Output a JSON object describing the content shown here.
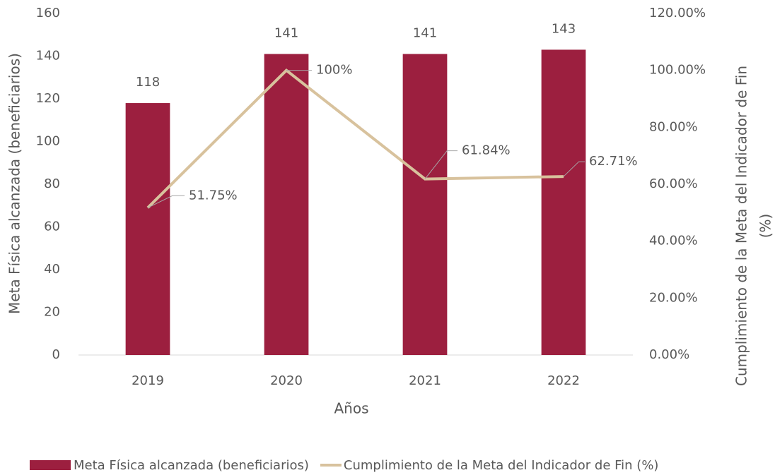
{
  "chart_data": {
    "type": "bar",
    "xlabel": "Años",
    "ylabel": "Meta Física alcanzada (beneficiarios)",
    "y2label": [
      "Cumplimiento de la Meta del Indicador de Fin",
      "(%)"
    ],
    "categories": [
      "2019",
      "2020",
      "2021",
      "2022"
    ],
    "series": [
      {
        "name": "Meta Física alcanzada (beneficiarios)",
        "type": "bar",
        "color": "#9c1f3f",
        "values": [
          118,
          141,
          141,
          143
        ]
      },
      {
        "name": "Cumplimiento de la Meta del Indicador de Fin (%)",
        "type": "line",
        "axis": "y2",
        "color": "#d8c29d",
        "values": [
          51.75,
          100,
          61.84,
          62.71
        ],
        "value_labels": [
          "51.75%",
          "100%",
          "61.84%",
          "62.71%"
        ]
      }
    ],
    "ylim": [
      0,
      160
    ],
    "yticks": [
      0,
      20,
      40,
      60,
      80,
      100,
      120,
      140,
      160
    ],
    "y2lim": [
      0,
      120
    ],
    "y2ticks": [
      {
        "value": 0,
        "label": "0.00%"
      },
      {
        "value": 20,
        "label": "20.00%"
      },
      {
        "value": 40,
        "label": "40.00%"
      },
      {
        "value": 60,
        "label": "60.00%"
      },
      {
        "value": 80,
        "label": "80.00%"
      },
      {
        "value": 100,
        "label": "100.00%"
      },
      {
        "value": 120,
        "label": "120.00%"
      }
    ],
    "grid": false,
    "legend": "bottom"
  }
}
